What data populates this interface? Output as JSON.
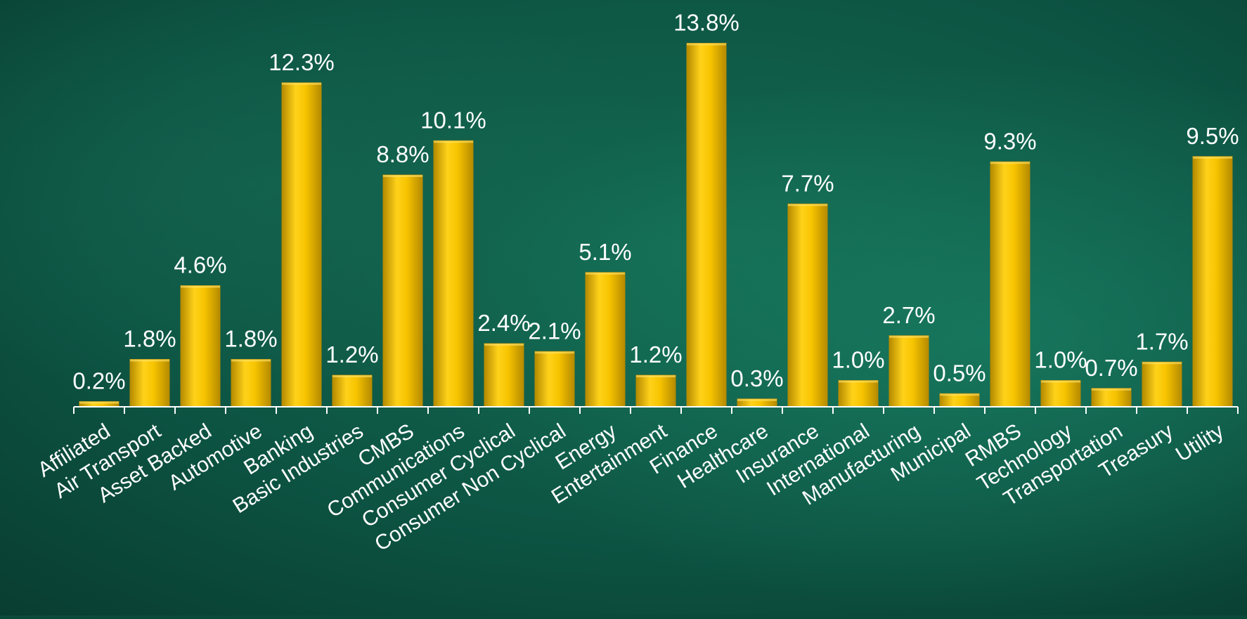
{
  "chart_data": {
    "type": "bar",
    "title": "",
    "xlabel": "",
    "ylabel": "",
    "ylim": [
      0,
      14
    ],
    "grid": false,
    "legend": "none",
    "categories": [
      "Affiliated",
      "Air Transport",
      "Asset Backed",
      "Automotive",
      "Banking",
      "Basic Industries",
      "CMBS",
      "Communications",
      "Consumer Cyclical",
      "Consumer Non Cyclical",
      "Energy",
      "Entertainment",
      "Finance",
      "Healthcare",
      "Insurance",
      "International",
      "Manufacturing",
      "Municipal",
      "RMBS",
      "Technology",
      "Transportation",
      "Treasury",
      "Utility"
    ],
    "values": [
      0.2,
      1.8,
      4.6,
      1.8,
      12.3,
      1.2,
      8.8,
      10.1,
      2.4,
      2.1,
      5.1,
      1.2,
      13.8,
      0.3,
      7.7,
      1.0,
      2.7,
      0.5,
      9.3,
      1.0,
      0.7,
      1.7,
      9.5
    ],
    "data_labels": [
      "0.2%",
      "1.8%",
      "4.6%",
      "1.8%",
      "12.3%",
      "1.2%",
      "8.8%",
      "10.1%",
      "2.4%",
      "2.1%",
      "5.1%",
      "1.2%",
      "13.8%",
      "0.3%",
      "7.7%",
      "1.0%",
      "2.7%",
      "0.5%",
      "9.3%",
      "1.0%",
      "0.7%",
      "1.7%",
      "9.5%"
    ]
  },
  "colors": {
    "bar_light": "#ffd21a",
    "bar_dark": "#b58a00",
    "text": "#ffffff",
    "axis": "#ffffff",
    "background": "#0b4a3a"
  }
}
